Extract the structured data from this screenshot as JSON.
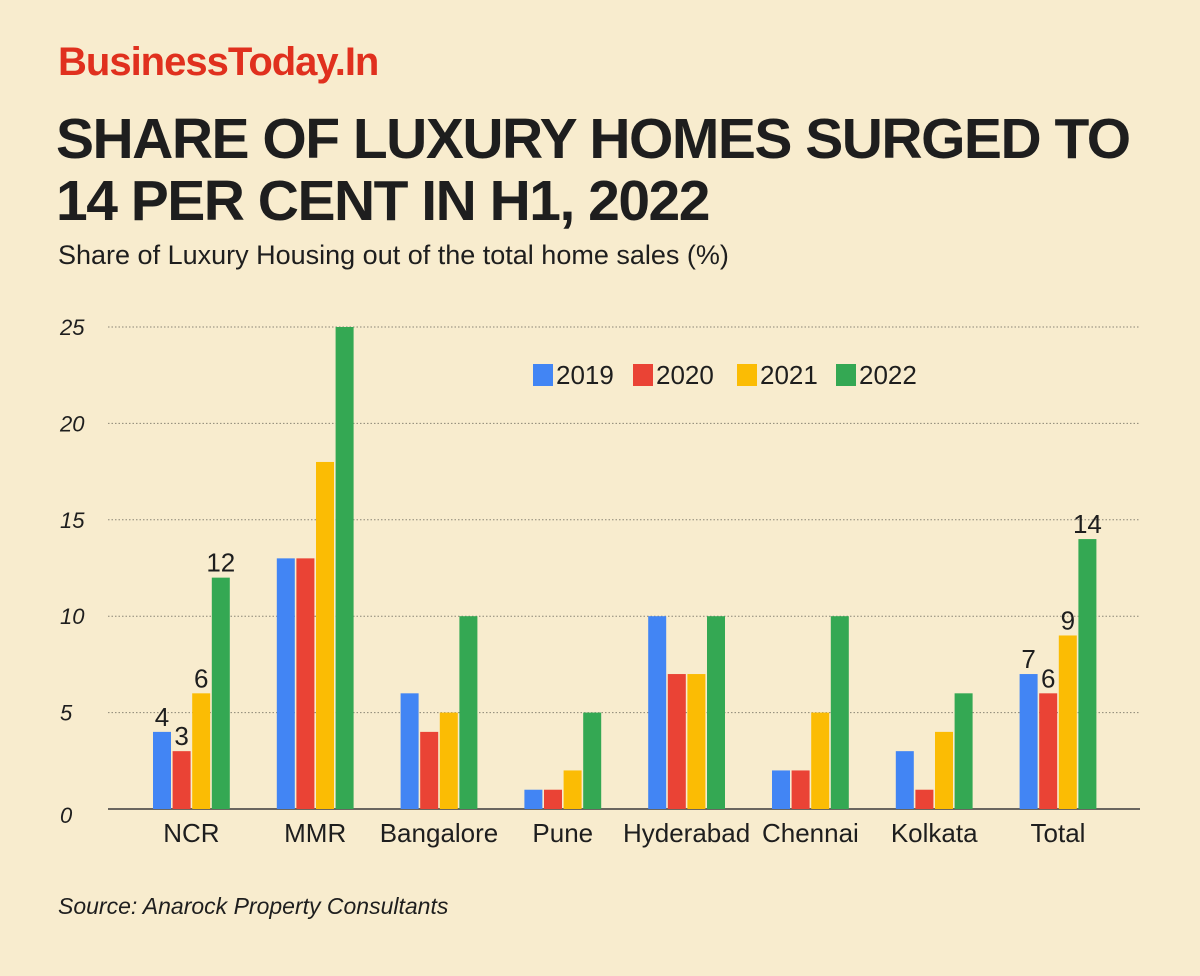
{
  "brand": "BusinessToday.In",
  "headline": "SHARE OF LUXURY HOMES SURGED TO 14 PER CENT IN H1, 2022",
  "source": "Source: Anarock Property Consultants",
  "chart_data": {
    "type": "bar",
    "title": "",
    "subtitle": "Share of Luxury Housing out of the total home sales (%)",
    "xlabel": "",
    "ylabel": "",
    "ylim": [
      0,
      25
    ],
    "yticks": [
      0,
      5,
      10,
      15,
      20,
      25
    ],
    "grid": true,
    "legend_position": "top-right",
    "categories": [
      "NCR",
      "MMR",
      "Bangalore",
      "Pune",
      "Hyderabad",
      "Chennai",
      "Kolkata",
      "Total"
    ],
    "series": [
      {
        "name": "2019",
        "color": "#4285f4",
        "values": [
          4,
          13,
          6,
          1,
          10,
          2,
          3,
          7
        ]
      },
      {
        "name": "2020",
        "color": "#ea4335",
        "values": [
          3,
          13,
          4,
          1,
          7,
          2,
          1,
          6
        ]
      },
      {
        "name": "2021",
        "color": "#fbbc04",
        "values": [
          6,
          18,
          5,
          2,
          7,
          5,
          4,
          9
        ]
      },
      {
        "name": "2022",
        "color": "#34a853",
        "values": [
          12,
          25,
          10,
          5,
          10,
          10,
          6,
          14
        ]
      }
    ],
    "labeled_categories": [
      "NCR",
      "Total"
    ]
  }
}
